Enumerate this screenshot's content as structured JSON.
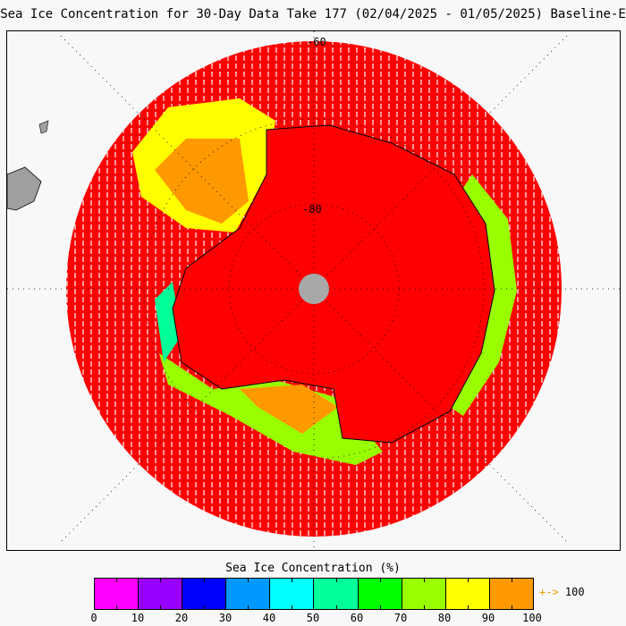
{
  "title": "Sea Ice Concentration for 30-Day Data Take 177 (02/04/2025 - 01/05/2025) Baseline-E",
  "map": {
    "latitude_labels": [
      "-60",
      "-80"
    ],
    "colors": {
      "open_water": "#ff0000",
      "land_outside": "#a0a0a0",
      "pole_hole": "#a8a8a8",
      "background": "#f8f8f8"
    }
  },
  "colorbar": {
    "title": "Sea Ice Concentration (%)",
    "colors": [
      "#ff00ff",
      "#9900ff",
      "#0000ff",
      "#0099ff",
      "#00ffff",
      "#00ff99",
      "#00ff00",
      "#99ff00",
      "#ffff00",
      "#ff9900"
    ],
    "ticks": [
      "0",
      "10",
      "20",
      "30",
      "40",
      "50",
      "60",
      "70",
      "80",
      "90",
      "100"
    ],
    "overflow_arrow": "+->",
    "overflow_label": "100"
  }
}
